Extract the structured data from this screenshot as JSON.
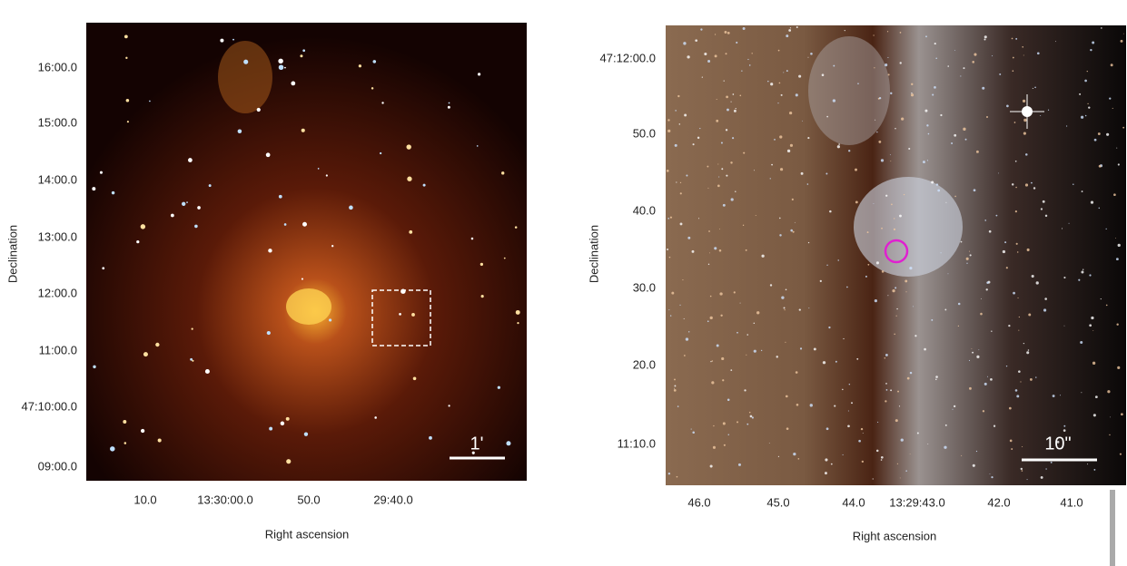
{
  "panels": [
    {
      "y_label": "Declination",
      "x_label": "Right ascension",
      "y_ticks": [
        "16:00.0",
        "15:00.0",
        "14:00.0",
        "13:00.0",
        "12:00.0",
        "11:00.0",
        "47:10:00.0",
        "09:00.0"
      ],
      "x_ticks": [
        "10.0",
        "13:30:00.0",
        "50.0",
        "29:40.0"
      ],
      "scale_bar": "1'"
    },
    {
      "y_label": "Declination",
      "x_label": "Right ascension",
      "y_ticks": [
        "47:12:00.0",
        "50.0",
        "40.0",
        "30.0",
        "20.0",
        "11:10.0"
      ],
      "x_ticks": [
        "46.0",
        "45.0",
        "44.0",
        "13:29:43.0",
        "42.0",
        "41.0"
      ],
      "scale_bar": "10\""
    }
  ]
}
